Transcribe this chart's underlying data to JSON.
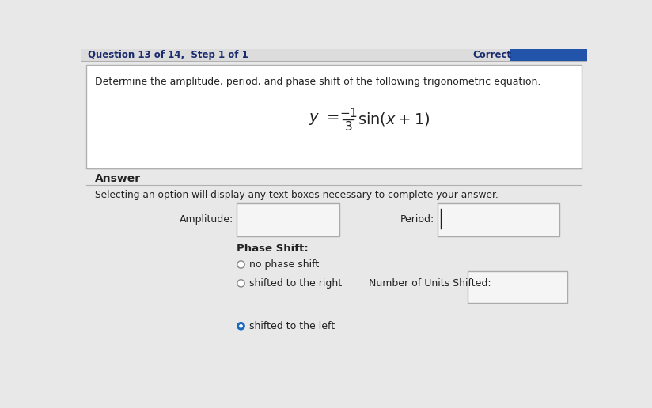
{
  "bg_color": "#e8e8e8",
  "white": "#ffffff",
  "header_bg": "#dcdcdc",
  "header_text": "Question 13 of 14,  Step 1 of 1",
  "correct_text": "Correct",
  "question_text": "Determine the amplitude, period, and phase shift of the following trigonometric equation.",
  "answer_label": "Answer",
  "selecting_text": "Selecting an option will display any text boxes necessary to complete your answer.",
  "amplitude_label": "Amplitude:",
  "period_label": "Period:",
  "phase_shift_label": "Phase Shift:",
  "option1": "no phase shift",
  "option2": "shifted to the right",
  "option3": "shifted to the left",
  "num_units_label": "Number of Units Shifted:",
  "header_text_color": "#1a2a6e",
  "correct_text_color": "#1a2a6e",
  "border_color": "#b0b0b0",
  "text_color": "#222222",
  "blue_bar_color": "#2255aa",
  "radio_fill_active": "#1a6bbf",
  "radio_fill_inactive": "#ffffff",
  "input_bg": "#f5f5f5"
}
